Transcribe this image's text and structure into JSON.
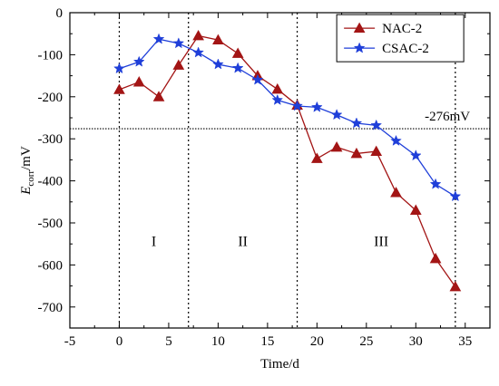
{
  "chart_data": {
    "type": "line",
    "xlabel": "Time/d",
    "ylabel_main": "E",
    "ylabel_sub": "corr",
    "ylabel_unit": "/mV",
    "xlim": [
      -5,
      37.5
    ],
    "ylim": [
      -750,
      0
    ],
    "xticks": [
      -5,
      0,
      5,
      10,
      15,
      20,
      25,
      30,
      35
    ],
    "yticks": [
      0,
      -100,
      -200,
      -300,
      -400,
      -500,
      -600,
      -700
    ],
    "grid": false,
    "legend_position": "top-right",
    "series": [
      {
        "name": "NAC-2",
        "color": "#a31515",
        "marker": "triangle",
        "x": [
          0,
          2,
          4,
          6,
          8,
          10,
          12,
          14,
          16,
          18,
          20,
          22,
          24,
          26,
          28,
          30,
          32,
          34
        ],
        "y": [
          -183,
          -165,
          -200,
          -125,
          -55,
          -65,
          -97,
          -150,
          -182,
          -220,
          -347,
          -320,
          -335,
          -330,
          -428,
          -470,
          -585,
          -652
        ]
      },
      {
        "name": "CSAC-2",
        "color": "#1f3fd9",
        "marker": "star",
        "x": [
          0,
          2,
          4,
          6,
          8,
          10,
          12,
          14,
          16,
          18,
          20,
          22,
          24,
          26,
          28,
          30,
          32,
          34
        ],
        "y": [
          -133,
          -117,
          -63,
          -73,
          -95,
          -123,
          -132,
          -160,
          -208,
          -222,
          -225,
          -243,
          -263,
          -268,
          -305,
          -340,
          -408,
          -437
        ]
      }
    ],
    "vlines": [
      0,
      7,
      18,
      34
    ],
    "hline": {
      "y": -276,
      "label": "-276mV"
    },
    "region_labels": [
      {
        "text": "I",
        "x": 3.5,
        "y": -555
      },
      {
        "text": "II",
        "x": 12.5,
        "y": -555
      },
      {
        "text": "III",
        "x": 26.5,
        "y": -555
      }
    ]
  }
}
